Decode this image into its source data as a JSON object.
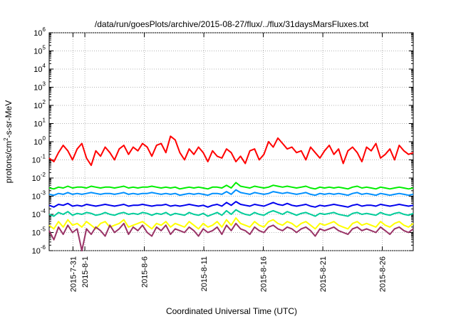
{
  "chart_data": {
    "type": "line",
    "title": "/data/run/goesPlots/archive/2015-08-27/flux/../flux/31daysMarsFluxes.txt",
    "xlabel": "Coordinated Universal Time (UTC)",
    "ylabel": {
      "base": "protons/cm",
      "sup": "2",
      "rest": "-s-sr-MeV"
    },
    "y_scale": "log",
    "ylim_exponent": [
      -6,
      6
    ],
    "y_tick_exponents": [
      -6,
      -5,
      -4,
      -3,
      -2,
      -1,
      0,
      1,
      2,
      3,
      4,
      5,
      6
    ],
    "y_tick_base": "10",
    "xlim_days": [
      29.0,
      59.6
    ],
    "x_ticks": [
      {
        "day": 31,
        "label": "2015-7-31"
      },
      {
        "day": 32,
        "label": "2015-8-1"
      },
      {
        "day": 37,
        "label": "2015-8-6"
      },
      {
        "day": 42,
        "label": "2015-8-11"
      },
      {
        "day": 47,
        "label": "2015-8-16"
      },
      {
        "day": 52,
        "label": "2015-8-21"
      },
      {
        "day": 57,
        "label": "2015-8-26"
      }
    ],
    "grid": true,
    "series": [
      {
        "color": "#ff0000",
        "log_values": [
          -0.9,
          -1.1,
          -0.6,
          -0.2,
          -0.5,
          -1.0,
          -0.4,
          -0.1,
          -0.9,
          -1.3,
          -0.5,
          -0.8,
          -0.3,
          -0.6,
          -1.0,
          -0.4,
          -0.2,
          -0.7,
          -0.3,
          -0.5,
          -0.1,
          -0.3,
          -0.8,
          -0.2,
          -0.1,
          -0.6,
          0.3,
          0.1,
          -0.6,
          -1.0,
          -0.4,
          -0.7,
          -0.3,
          -0.6,
          -1.1,
          -0.5,
          -0.8,
          -0.9,
          -0.4,
          -0.6,
          -1.1,
          -0.8,
          -1.2,
          -0.5,
          -0.4,
          -1.0,
          -0.7,
          0.0,
          -0.3,
          0.2,
          -0.1,
          -0.4,
          -0.3,
          -0.6,
          -0.5,
          -1.0,
          -0.3,
          -0.6,
          -0.9,
          -0.5,
          -0.2,
          -0.7,
          -0.4,
          -1.2,
          -0.5,
          -0.3,
          -0.6,
          -1.1,
          -0.3,
          -0.5,
          -0.1,
          -0.9,
          -0.7,
          -0.4,
          -1.0,
          -0.2,
          -0.5,
          -0.7,
          -0.6
        ]
      },
      {
        "color": "#00ee00",
        "log_values": [
          -2.55,
          -2.6,
          -2.5,
          -2.55,
          -2.45,
          -2.55,
          -2.5,
          -2.5,
          -2.55,
          -2.45,
          -2.5,
          -2.55,
          -2.5,
          -2.5,
          -2.55,
          -2.5,
          -2.45,
          -2.55,
          -2.5,
          -2.55,
          -2.5,
          -2.5,
          -2.45,
          -2.5,
          -2.55,
          -2.5,
          -2.55,
          -2.5,
          -2.6,
          -2.55,
          -2.5,
          -2.55,
          -2.5,
          -2.55,
          -2.6,
          -2.5,
          -2.5,
          -2.55,
          -2.4,
          -2.55,
          -2.25,
          -2.45,
          -2.5,
          -2.55,
          -2.45,
          -2.5,
          -2.55,
          -2.5,
          -2.4,
          -2.45,
          -2.5,
          -2.45,
          -2.5,
          -2.55,
          -2.5,
          -2.45,
          -2.55,
          -2.6,
          -2.5,
          -2.55,
          -2.5,
          -2.55,
          -2.5,
          -2.55,
          -2.6,
          -2.5,
          -2.45,
          -2.55,
          -2.5,
          -2.55,
          -2.6,
          -2.5,
          -2.55,
          -2.6,
          -2.55,
          -2.5,
          -2.55,
          -2.6,
          -2.55
        ]
      },
      {
        "color": "#0090ff",
        "log_values": [
          -2.9,
          -2.95,
          -2.85,
          -2.9,
          -2.8,
          -2.9,
          -2.85,
          -2.9,
          -2.85,
          -2.8,
          -2.85,
          -2.9,
          -2.85,
          -2.85,
          -2.9,
          -2.85,
          -2.8,
          -2.9,
          -2.85,
          -2.9,
          -2.85,
          -2.85,
          -2.8,
          -2.85,
          -2.9,
          -2.85,
          -2.9,
          -2.85,
          -2.95,
          -2.9,
          -2.85,
          -2.9,
          -2.85,
          -2.9,
          -2.95,
          -2.85,
          -2.85,
          -2.9,
          -2.75,
          -2.9,
          -2.65,
          -2.8,
          -2.85,
          -2.9,
          -2.8,
          -2.85,
          -2.9,
          -2.85,
          -2.75,
          -2.8,
          -2.85,
          -2.8,
          -2.85,
          -2.9,
          -2.85,
          -2.8,
          -2.9,
          -2.95,
          -2.85,
          -2.9,
          -2.85,
          -2.9,
          -2.85,
          -2.9,
          -2.95,
          -2.85,
          -2.8,
          -2.9,
          -2.85,
          -2.9,
          -2.95,
          -2.85,
          -2.9,
          -2.95,
          -2.9,
          -2.85,
          -2.9,
          -2.95,
          -2.9
        ]
      },
      {
        "color": "#0000ee",
        "log_values": [
          -3.5,
          -3.6,
          -3.45,
          -3.5,
          -3.4,
          -3.55,
          -3.5,
          -3.55,
          -3.45,
          -3.5,
          -3.55,
          -3.5,
          -3.45,
          -3.5,
          -3.55,
          -3.5,
          -3.45,
          -3.55,
          -3.5,
          -3.5,
          -3.45,
          -3.5,
          -3.55,
          -3.5,
          -3.5,
          -3.45,
          -3.55,
          -3.5,
          -3.55,
          -3.5,
          -3.45,
          -3.5,
          -3.55,
          -3.5,
          -3.6,
          -3.5,
          -3.45,
          -3.55,
          -3.35,
          -3.5,
          -3.3,
          -3.45,
          -3.5,
          -3.55,
          -3.45,
          -3.5,
          -3.55,
          -3.45,
          -3.35,
          -3.45,
          -3.5,
          -3.4,
          -3.5,
          -3.55,
          -3.5,
          -3.45,
          -3.55,
          -3.6,
          -3.5,
          -3.55,
          -3.5,
          -3.45,
          -3.5,
          -3.55,
          -3.6,
          -3.5,
          -3.45,
          -3.55,
          -3.5,
          -3.5,
          -3.55,
          -3.45,
          -3.5,
          -3.55,
          -3.5,
          -3.45,
          -3.5,
          -3.55,
          -3.5
        ]
      },
      {
        "color": "#00cc99",
        "log_values": [
          -4.0,
          -4.1,
          -3.9,
          -4.0,
          -3.85,
          -4.05,
          -3.95,
          -4.0,
          -3.9,
          -3.95,
          -4.05,
          -4.0,
          -3.9,
          -4.0,
          -4.05,
          -3.95,
          -3.9,
          -4.0,
          -3.95,
          -4.0,
          -3.9,
          -3.95,
          -4.05,
          -3.95,
          -4.0,
          -3.9,
          -4.05,
          -3.95,
          -4.0,
          -4.05,
          -3.9,
          -4.0,
          -4.05,
          -3.95,
          -4.1,
          -4.0,
          -3.9,
          -4.05,
          -3.8,
          -4.0,
          -3.75,
          -3.9,
          -4.0,
          -4.05,
          -3.9,
          -4.0,
          -4.05,
          -3.9,
          -3.8,
          -3.9,
          -4.0,
          -3.85,
          -3.95,
          -4.05,
          -3.95,
          -3.9,
          -4.0,
          -4.1,
          -3.95,
          -4.0,
          -3.95,
          -3.9,
          -4.0,
          -4.05,
          -4.1,
          -3.95,
          -3.9,
          -4.0,
          -3.95,
          -4.0,
          -4.05,
          -3.9,
          -4.0,
          -4.05,
          -3.95,
          -3.9,
          -4.0,
          -4.05,
          -3.95
        ]
      },
      {
        "color": "#ffff00",
        "log_values": [
          -4.6,
          -4.8,
          -4.4,
          -4.7,
          -4.3,
          -4.6,
          -4.5,
          -4.7,
          -4.4,
          -4.6,
          -4.8,
          -4.5,
          -4.4,
          -4.7,
          -4.6,
          -4.5,
          -4.3,
          -4.7,
          -4.6,
          -4.5,
          -4.4,
          -4.6,
          -4.8,
          -4.5,
          -4.6,
          -4.4,
          -4.7,
          -4.5,
          -4.6,
          -4.7,
          -4.4,
          -4.6,
          -4.8,
          -4.5,
          -4.7,
          -4.6,
          -4.4,
          -4.7,
          -4.3,
          -4.6,
          -4.2,
          -4.5,
          -4.6,
          -4.7,
          -4.4,
          -4.6,
          -4.7,
          -4.4,
          -4.3,
          -4.5,
          -4.6,
          -4.4,
          -4.5,
          -4.7,
          -4.5,
          -4.4,
          -4.6,
          -4.8,
          -4.5,
          -4.6,
          -4.5,
          -4.4,
          -4.6,
          -4.7,
          -4.8,
          -4.5,
          -4.4,
          -4.6,
          -4.5,
          -4.6,
          -4.7,
          -4.4,
          -4.6,
          -4.7,
          -4.5,
          -4.4,
          -4.6,
          -4.7,
          -4.5
        ]
      },
      {
        "color": "#993366",
        "log_values": [
          -4.9,
          -5.4,
          -4.7,
          -5.1,
          -4.6,
          -5.0,
          -4.8,
          -6.0,
          -4.8,
          -5.1,
          -4.7,
          -4.9,
          -5.2,
          -4.6,
          -5.0,
          -4.8,
          -4.5,
          -5.1,
          -4.7,
          -4.9,
          -4.6,
          -5.0,
          -5.2,
          -4.7,
          -4.9,
          -4.6,
          -5.1,
          -4.8,
          -4.9,
          -5.0,
          -4.7,
          -4.9,
          -5.2,
          -4.8,
          -5.0,
          -4.9,
          -4.7,
          -5.1,
          -4.6,
          -4.9,
          -4.5,
          -4.8,
          -4.9,
          -5.1,
          -4.7,
          -4.9,
          -5.0,
          -4.7,
          -4.6,
          -4.8,
          -4.9,
          -4.7,
          -4.8,
          -5.0,
          -4.8,
          -4.7,
          -4.9,
          -5.2,
          -4.8,
          -4.9,
          -4.8,
          -4.7,
          -4.9,
          -5.0,
          -5.1,
          -4.8,
          -4.7,
          -4.9,
          -4.8,
          -4.9,
          -5.0,
          -4.7,
          -4.9,
          -5.1,
          -4.8,
          -4.7,
          -4.9,
          -5.0,
          -4.8
        ]
      }
    ]
  }
}
